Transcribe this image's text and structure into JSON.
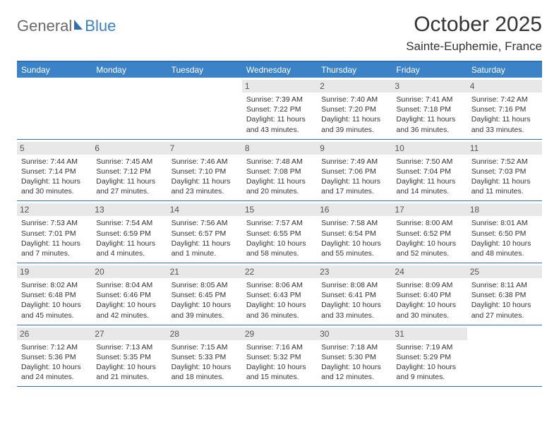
{
  "logo": {
    "general": "General",
    "blue": "Blue"
  },
  "title": "October 2025",
  "location": "Sainte-Euphemie, France",
  "day_headers": [
    "Sunday",
    "Monday",
    "Tuesday",
    "Wednesday",
    "Thursday",
    "Friday",
    "Saturday"
  ],
  "colors": {
    "header_bg": "#3b82c7",
    "accent_border": "#2f6fb5",
    "daynum_bg": "#e8e8e8",
    "text": "#333333",
    "logo_gray": "#6a6a6a",
    "logo_blue": "#3b7fc4"
  },
  "weeks": [
    [
      {
        "n": "",
        "sr": "",
        "ss": "",
        "dl": ""
      },
      {
        "n": "",
        "sr": "",
        "ss": "",
        "dl": ""
      },
      {
        "n": "",
        "sr": "",
        "ss": "",
        "dl": ""
      },
      {
        "n": "1",
        "sr": "Sunrise: 7:39 AM",
        "ss": "Sunset: 7:22 PM",
        "dl": "Daylight: 11 hours and 43 minutes."
      },
      {
        "n": "2",
        "sr": "Sunrise: 7:40 AM",
        "ss": "Sunset: 7:20 PM",
        "dl": "Daylight: 11 hours and 39 minutes."
      },
      {
        "n": "3",
        "sr": "Sunrise: 7:41 AM",
        "ss": "Sunset: 7:18 PM",
        "dl": "Daylight: 11 hours and 36 minutes."
      },
      {
        "n": "4",
        "sr": "Sunrise: 7:42 AM",
        "ss": "Sunset: 7:16 PM",
        "dl": "Daylight: 11 hours and 33 minutes."
      }
    ],
    [
      {
        "n": "5",
        "sr": "Sunrise: 7:44 AM",
        "ss": "Sunset: 7:14 PM",
        "dl": "Daylight: 11 hours and 30 minutes."
      },
      {
        "n": "6",
        "sr": "Sunrise: 7:45 AM",
        "ss": "Sunset: 7:12 PM",
        "dl": "Daylight: 11 hours and 27 minutes."
      },
      {
        "n": "7",
        "sr": "Sunrise: 7:46 AM",
        "ss": "Sunset: 7:10 PM",
        "dl": "Daylight: 11 hours and 23 minutes."
      },
      {
        "n": "8",
        "sr": "Sunrise: 7:48 AM",
        "ss": "Sunset: 7:08 PM",
        "dl": "Daylight: 11 hours and 20 minutes."
      },
      {
        "n": "9",
        "sr": "Sunrise: 7:49 AM",
        "ss": "Sunset: 7:06 PM",
        "dl": "Daylight: 11 hours and 17 minutes."
      },
      {
        "n": "10",
        "sr": "Sunrise: 7:50 AM",
        "ss": "Sunset: 7:04 PM",
        "dl": "Daylight: 11 hours and 14 minutes."
      },
      {
        "n": "11",
        "sr": "Sunrise: 7:52 AM",
        "ss": "Sunset: 7:03 PM",
        "dl": "Daylight: 11 hours and 11 minutes."
      }
    ],
    [
      {
        "n": "12",
        "sr": "Sunrise: 7:53 AM",
        "ss": "Sunset: 7:01 PM",
        "dl": "Daylight: 11 hours and 7 minutes."
      },
      {
        "n": "13",
        "sr": "Sunrise: 7:54 AM",
        "ss": "Sunset: 6:59 PM",
        "dl": "Daylight: 11 hours and 4 minutes."
      },
      {
        "n": "14",
        "sr": "Sunrise: 7:56 AM",
        "ss": "Sunset: 6:57 PM",
        "dl": "Daylight: 11 hours and 1 minute."
      },
      {
        "n": "15",
        "sr": "Sunrise: 7:57 AM",
        "ss": "Sunset: 6:55 PM",
        "dl": "Daylight: 10 hours and 58 minutes."
      },
      {
        "n": "16",
        "sr": "Sunrise: 7:58 AM",
        "ss": "Sunset: 6:54 PM",
        "dl": "Daylight: 10 hours and 55 minutes."
      },
      {
        "n": "17",
        "sr": "Sunrise: 8:00 AM",
        "ss": "Sunset: 6:52 PM",
        "dl": "Daylight: 10 hours and 52 minutes."
      },
      {
        "n": "18",
        "sr": "Sunrise: 8:01 AM",
        "ss": "Sunset: 6:50 PM",
        "dl": "Daylight: 10 hours and 48 minutes."
      }
    ],
    [
      {
        "n": "19",
        "sr": "Sunrise: 8:02 AM",
        "ss": "Sunset: 6:48 PM",
        "dl": "Daylight: 10 hours and 45 minutes."
      },
      {
        "n": "20",
        "sr": "Sunrise: 8:04 AM",
        "ss": "Sunset: 6:46 PM",
        "dl": "Daylight: 10 hours and 42 minutes."
      },
      {
        "n": "21",
        "sr": "Sunrise: 8:05 AM",
        "ss": "Sunset: 6:45 PM",
        "dl": "Daylight: 10 hours and 39 minutes."
      },
      {
        "n": "22",
        "sr": "Sunrise: 8:06 AM",
        "ss": "Sunset: 6:43 PM",
        "dl": "Daylight: 10 hours and 36 minutes."
      },
      {
        "n": "23",
        "sr": "Sunrise: 8:08 AM",
        "ss": "Sunset: 6:41 PM",
        "dl": "Daylight: 10 hours and 33 minutes."
      },
      {
        "n": "24",
        "sr": "Sunrise: 8:09 AM",
        "ss": "Sunset: 6:40 PM",
        "dl": "Daylight: 10 hours and 30 minutes."
      },
      {
        "n": "25",
        "sr": "Sunrise: 8:11 AM",
        "ss": "Sunset: 6:38 PM",
        "dl": "Daylight: 10 hours and 27 minutes."
      }
    ],
    [
      {
        "n": "26",
        "sr": "Sunrise: 7:12 AM",
        "ss": "Sunset: 5:36 PM",
        "dl": "Daylight: 10 hours and 24 minutes."
      },
      {
        "n": "27",
        "sr": "Sunrise: 7:13 AM",
        "ss": "Sunset: 5:35 PM",
        "dl": "Daylight: 10 hours and 21 minutes."
      },
      {
        "n": "28",
        "sr": "Sunrise: 7:15 AM",
        "ss": "Sunset: 5:33 PM",
        "dl": "Daylight: 10 hours and 18 minutes."
      },
      {
        "n": "29",
        "sr": "Sunrise: 7:16 AM",
        "ss": "Sunset: 5:32 PM",
        "dl": "Daylight: 10 hours and 15 minutes."
      },
      {
        "n": "30",
        "sr": "Sunrise: 7:18 AM",
        "ss": "Sunset: 5:30 PM",
        "dl": "Daylight: 10 hours and 12 minutes."
      },
      {
        "n": "31",
        "sr": "Sunrise: 7:19 AM",
        "ss": "Sunset: 5:29 PM",
        "dl": "Daylight: 10 hours and 9 minutes."
      },
      {
        "n": "",
        "sr": "",
        "ss": "",
        "dl": ""
      }
    ]
  ]
}
